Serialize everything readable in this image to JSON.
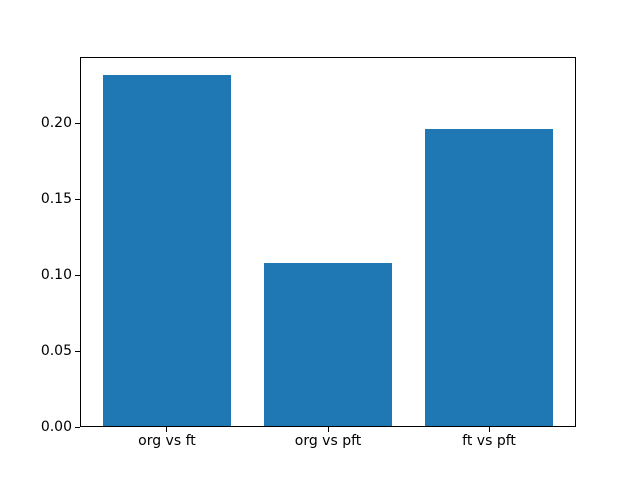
{
  "chart_data": {
    "type": "bar",
    "title": "",
    "xlabel": "",
    "ylabel": "",
    "categories": [
      "org vs ft",
      "org vs pft",
      "ft vs pft"
    ],
    "values": [
      0.232,
      0.108,
      0.196
    ],
    "ylim": [
      0,
      0.2436
    ],
    "yticks": [
      0.0,
      0.05,
      0.1,
      0.15,
      0.2
    ],
    "ytick_labels": [
      "0.00",
      "0.05",
      "0.10",
      "0.15",
      "0.20"
    ],
    "bar_color": "#1f77b4",
    "spine_color": "#000000",
    "background_color": "#ffffff",
    "grid": false,
    "legend": false
  }
}
